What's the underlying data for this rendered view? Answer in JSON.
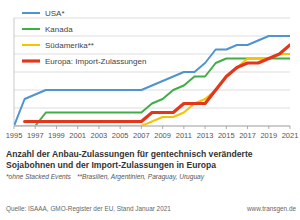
{
  "chart_data": {
    "type": "line",
    "title": "Anzahl der Anbau-Zulassungen für gentechnisch veränderte Sojabohnen und der Import-Zulassungen in Europa",
    "annotations": [
      "*ohne Stacked Events",
      "**Brasilien, Argentinien, Paraguay, Uruguay",
      "Quelle: ISAAA, GMO-Register der EU, Stand Januar 2021",
      "www.transgen.de"
    ],
    "x": [
      1995,
      1996,
      1997,
      1998,
      1999,
      2000,
      2001,
      2002,
      2003,
      2004,
      2005,
      2006,
      2007,
      2008,
      2009,
      2010,
      2011,
      2012,
      2013,
      2014,
      2015,
      2016,
      2017,
      2018,
      2019,
      2020,
      2021
    ],
    "series": [
      {
        "name": "USA*",
        "color": "#4f93cf",
        "values": [
          0,
          6,
          7,
          8,
          8,
          8,
          8,
          8,
          8,
          8,
          8,
          8,
          8,
          9,
          10,
          11,
          12,
          12,
          14,
          17,
          17,
          18,
          18,
          19,
          20,
          20,
          20
        ]
      },
      {
        "name": "Kanada",
        "color": "#3fae49",
        "values": [
          0,
          0,
          0,
          3,
          3,
          3,
          3,
          3,
          3,
          3,
          3,
          3,
          3,
          5,
          6,
          8,
          9,
          11,
          11,
          14,
          15,
          15,
          15,
          15,
          15,
          15,
          15
        ]
      },
      {
        "name": "Südamerika**",
        "color": "#f5c400",
        "values": [
          0,
          0,
          0,
          0,
          0,
          0,
          0,
          0,
          0,
          0,
          0,
          0,
          0,
          1,
          2,
          2,
          3,
          5,
          6,
          8,
          11,
          13,
          15,
          15,
          15,
          16,
          16
        ]
      },
      {
        "name": "Europa: Import-Zulassungen",
        "color": "#e5361b",
        "values": [
          null,
          1,
          1,
          1,
          1,
          1,
          1,
          1,
          1,
          1,
          1,
          1,
          1,
          3,
          3,
          3,
          5,
          5,
          5,
          8,
          11,
          13,
          14,
          14,
          15,
          16,
          18
        ]
      }
    ],
    "xlim": [
      1995,
      2021
    ],
    "xticks": [
      1995,
      1997,
      1999,
      2001,
      2003,
      2005,
      2007,
      2009,
      2011,
      2013,
      2015,
      2017,
      2019,
      2021
    ],
    "ylim": [
      0,
      24
    ],
    "yticks": [
      0,
      4,
      8,
      12,
      16,
      20,
      24
    ],
    "grid": true,
    "legend": "upper left",
    "tick_labels": "x"
  }
}
